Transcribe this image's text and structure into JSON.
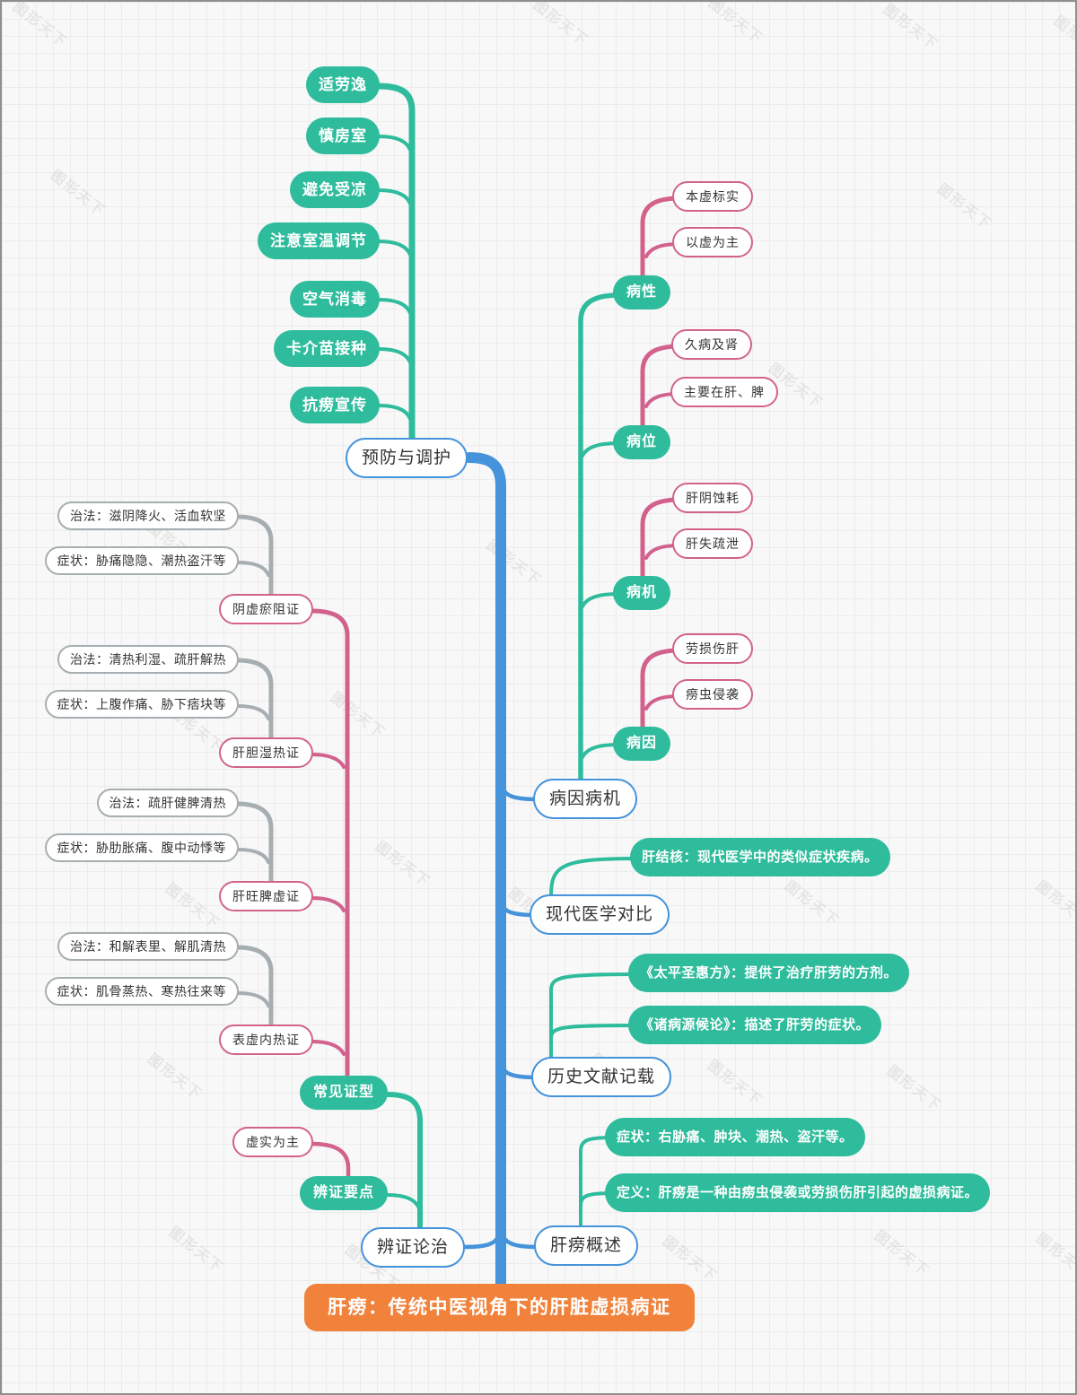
{
  "watermark": {
    "text": "图形天下"
  },
  "root": {
    "label": "肝痨：传统中医视角下的肝脏虚损病证"
  },
  "prevention": {
    "label": "预防与调护",
    "items": [
      "适劳逸",
      "慎房室",
      "避免受凉",
      "注意室温调节",
      "空气消毒",
      "卡介苗接种",
      "抗痨宣传"
    ]
  },
  "etiology": {
    "label": "病因病机",
    "groups": [
      {
        "label": "病性",
        "items": [
          "本虚标实",
          "以虚为主"
        ]
      },
      {
        "label": "病位",
        "items": [
          "久病及肾",
          "主要在肝、脾"
        ]
      },
      {
        "label": "病机",
        "items": [
          "肝阴蚀耗",
          "肝失疏泄"
        ]
      },
      {
        "label": "病因",
        "items": [
          "劳损伤肝",
          "痨虫侵袭"
        ]
      }
    ]
  },
  "modern": {
    "label": "现代医学对比",
    "items": [
      "肝结核：现代医学中的类似症状疾病。"
    ]
  },
  "history": {
    "label": "历史文献记载",
    "items": [
      "《太平圣惠方》：提供了治疗肝劳的方剂。",
      "《诸病源候论》：描述了肝劳的症状。"
    ]
  },
  "overview": {
    "label": "肝痨概述",
    "items": [
      "症状：右胁痛、肿块、潮热、盗汗等。",
      "定义：肝痨是一种由痨虫侵袭或劳损伤肝引起的虚损病证。"
    ]
  },
  "treatment": {
    "label": "辨证论治",
    "key_points": {
      "label": "辨证要点",
      "items": [
        "虚实为主"
      ]
    },
    "patterns": {
      "label": "常见证型",
      "list": [
        {
          "name": "阴虚瘀阻证",
          "treat": "治法：滋阴降火、活血软坚",
          "symptom": "症状：胁痛隐隐、潮热盗汗等"
        },
        {
          "name": "肝胆湿热证",
          "treat": "治法：清热利湿、疏肝解热",
          "symptom": "症状：上腹作痛、胁下痞块等"
        },
        {
          "name": "肝旺脾虚证",
          "treat": "治法：疏肝健脾清热",
          "symptom": "症状：胁肋胀痛、腹中动悸等"
        },
        {
          "name": "表虚内热证",
          "treat": "治法：和解表里、解肌清热",
          "symptom": "症状：肌骨蒸热、寒热往来等"
        }
      ]
    }
  },
  "colors": {
    "teal": "#2EBC9C",
    "pink": "#D2628C",
    "blue": "#4593DB",
    "gray": "#A6AEB1",
    "orange": "#F0823C"
  }
}
